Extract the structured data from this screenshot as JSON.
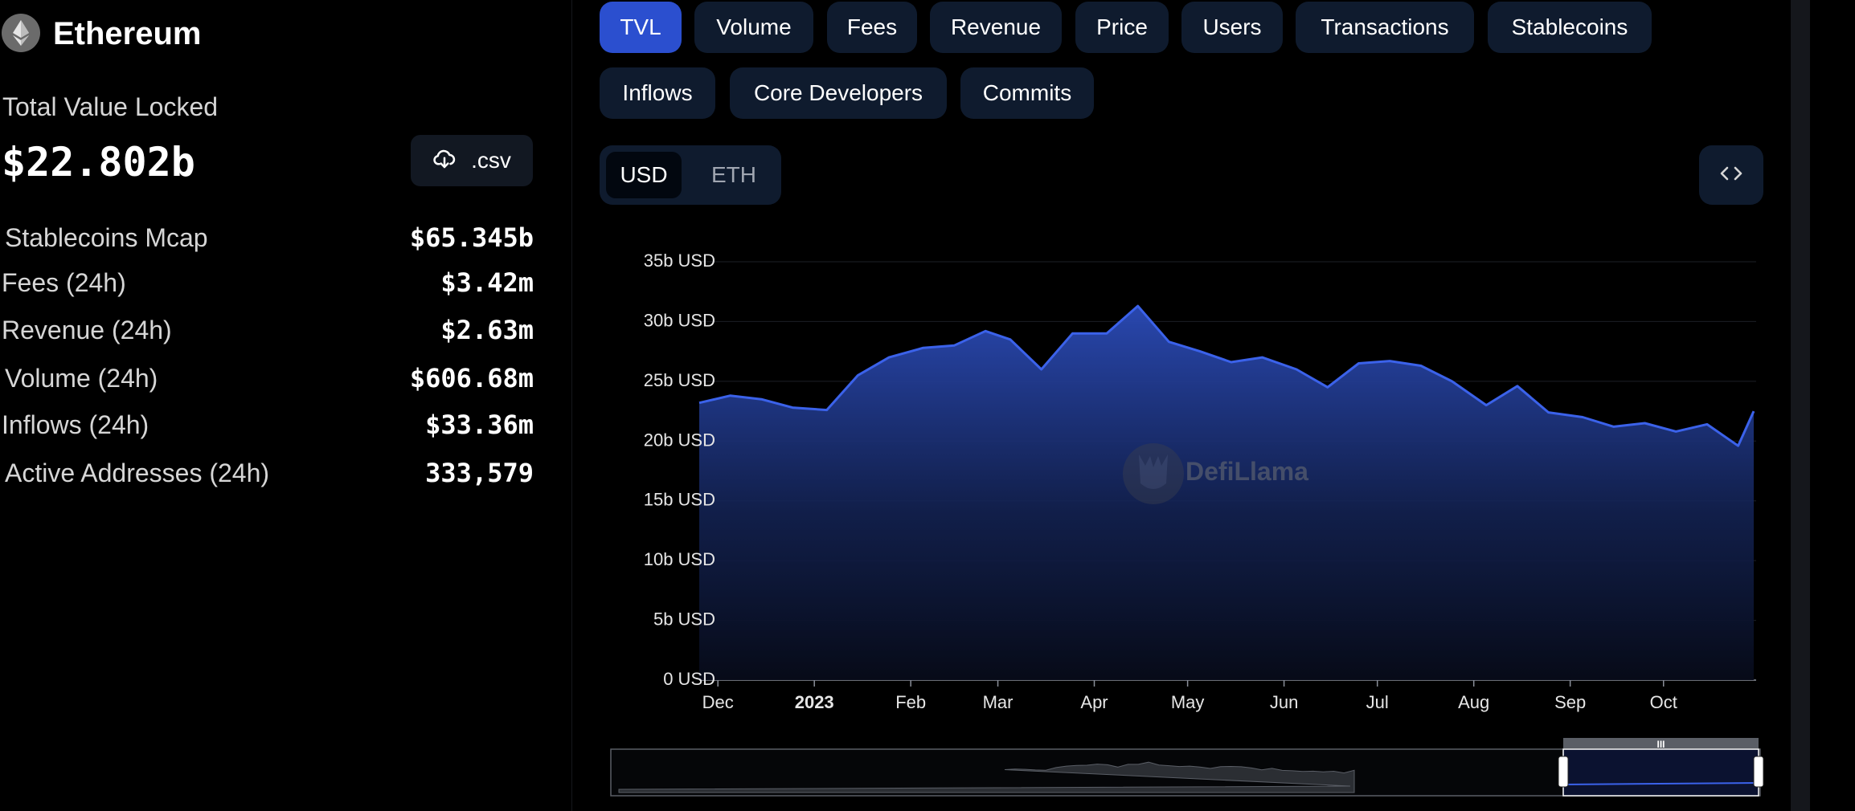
{
  "chain": {
    "name": "Ethereum",
    "logo_icon": "ethereum-logo-icon"
  },
  "tvl": {
    "label": "Total Value Locked",
    "value": "$22.802b",
    "csv_label": ".csv",
    "csv_icon": "cloud-download-icon"
  },
  "stats": [
    {
      "label": "Stablecoins Mcap",
      "value": "$65.345b"
    },
    {
      "label": "Fees (24h)",
      "value": "$3.42m"
    },
    {
      "label": "Revenue (24h)",
      "value": "$2.63m"
    },
    {
      "label": "Volume (24h)",
      "value": "$606.68m"
    },
    {
      "label": "Inflows (24h)",
      "value": "$33.36m"
    },
    {
      "label": "Active Addresses (24h)",
      "value": "333,579"
    }
  ],
  "tabs": [
    {
      "label": "TVL",
      "active": true
    },
    {
      "label": "Volume"
    },
    {
      "label": "Fees"
    },
    {
      "label": "Revenue"
    },
    {
      "label": "Price"
    },
    {
      "label": "Users"
    },
    {
      "label": "Transactions"
    },
    {
      "label": "Stablecoins"
    },
    {
      "label": "Inflows"
    },
    {
      "label": "Core Developers"
    },
    {
      "label": "Commits"
    }
  ],
  "currency_toggle": {
    "options": [
      "USD",
      "ETH"
    ],
    "selected": "USD"
  },
  "embed_icon": "code-brackets-icon",
  "colors": {
    "accent": "#2b4fcf",
    "chart_line": "#3b62ea",
    "tab_bg": "#0f1b2e",
    "background": "#000000"
  },
  "watermark": "DefiLlama",
  "chart_data": {
    "type": "area",
    "title": "",
    "xlabel": "",
    "ylabel": "",
    "ylim": [
      0,
      35
    ],
    "y_ticks": [
      "0 USD",
      "5b USD",
      "10b USD",
      "15b USD",
      "20b USD",
      "25b USD",
      "30b USD",
      "35b USD"
    ],
    "x_ticks": [
      "Dec",
      "2023",
      "Feb",
      "Mar",
      "Apr",
      "May",
      "Jun",
      "Jul",
      "Aug",
      "Sep",
      "Oct"
    ],
    "x": [
      "2022-11-25",
      "2022-12-05",
      "2022-12-15",
      "2022-12-25",
      "2023-01-05",
      "2023-01-15",
      "2023-01-25",
      "2023-02-05",
      "2023-02-15",
      "2023-02-25",
      "2023-03-05",
      "2023-03-15",
      "2023-03-25",
      "2023-04-05",
      "2023-04-15",
      "2023-04-25",
      "2023-05-05",
      "2023-05-15",
      "2023-05-25",
      "2023-06-05",
      "2023-06-15",
      "2023-06-25",
      "2023-07-05",
      "2023-07-15",
      "2023-07-25",
      "2023-08-05",
      "2023-08-15",
      "2023-08-25",
      "2023-09-05",
      "2023-09-15",
      "2023-09-25",
      "2023-10-05",
      "2023-10-15",
      "2023-10-25",
      "2023-10-30"
    ],
    "series": [
      {
        "name": "",
        "values": [
          23.2,
          23.8,
          23.5,
          22.8,
          22.6,
          25.5,
          27.0,
          27.8,
          28.0,
          29.2,
          28.5,
          26.0,
          29.0,
          29.0,
          31.3,
          28.3,
          27.5,
          26.6,
          27.0,
          26.0,
          24.5,
          26.5,
          26.7,
          26.3,
          25.0,
          23.0,
          24.6,
          22.4,
          22.0,
          21.2,
          21.5,
          20.8,
          21.4,
          19.6,
          22.5
        ]
      }
    ],
    "grid": true,
    "legend": "none"
  }
}
